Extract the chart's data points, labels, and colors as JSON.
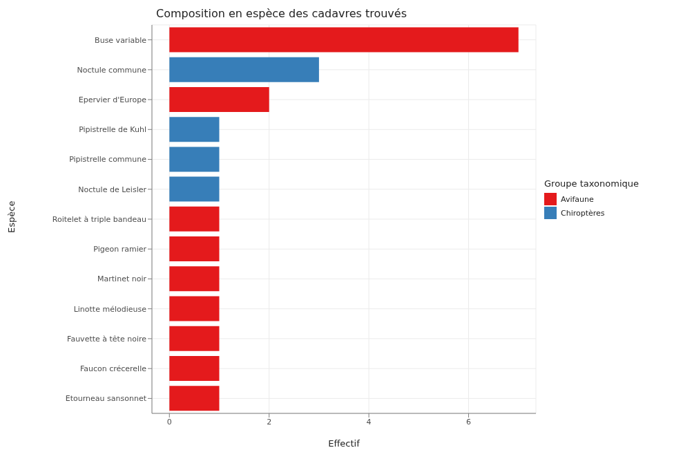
{
  "chart_data": {
    "type": "bar",
    "orientation": "horizontal",
    "stacked": true,
    "title": "Composition en espèce des cadavres trouvés",
    "xlabel": "Effectif",
    "ylabel": "Espèce",
    "legend_title": "Groupe taxonomique",
    "legend": "right",
    "grid": true,
    "categories": [
      "Buse variable",
      "Noctule commune",
      "Epervier d'Europe",
      "Pipistrelle de Kuhl",
      "Pipistrelle commune",
      "Noctule de Leisler",
      "Roitelet à triple bandeau",
      "Pigeon ramier",
      "Martinet noir",
      "Linotte mélodieuse",
      "Fauvette à tête noire",
      "Faucon crécerelle",
      "Etourneau sansonnet"
    ],
    "series": [
      {
        "name": "Avifaune",
        "color": "#e41a1c",
        "values": [
          7,
          null,
          2,
          null,
          null,
          null,
          1,
          1,
          1,
          1,
          1,
          1,
          1
        ]
      },
      {
        "name": "Chiroptères",
        "color": "#377eb8",
        "values": [
          null,
          3,
          null,
          1,
          1,
          1,
          null,
          null,
          null,
          null,
          null,
          null,
          null
        ]
      }
    ],
    "xlim": [
      -0.35,
      7.35
    ],
    "xticks": [
      0,
      2,
      4,
      6
    ]
  }
}
